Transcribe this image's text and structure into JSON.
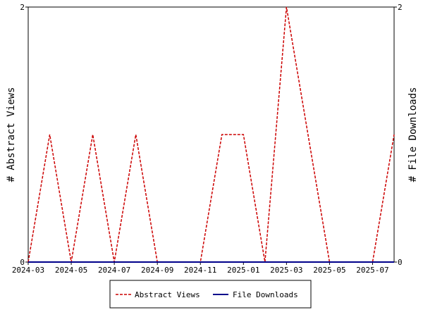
{
  "chart_data": {
    "type": "line",
    "x": [
      "2024-03",
      "2024-04",
      "2024-05",
      "2024-06",
      "2024-07",
      "2024-08",
      "2024-09",
      "2024-10",
      "2024-11",
      "2024-12",
      "2025-01",
      "2025-02",
      "2025-03",
      "2025-04",
      "2025-05",
      "2025-06",
      "2025-07",
      "2025-08"
    ],
    "x_tick_labels": [
      "2024-03",
      "2024-05",
      "2024-07",
      "2024-09",
      "2024-11",
      "2025-01",
      "2025-03",
      "2025-05",
      "2025-07"
    ],
    "ylabel_left": "# Abstract Views",
    "ylabel_right": "# File Downloads",
    "ylim_left": [
      0,
      2
    ],
    "ylim_right": [
      0,
      2
    ],
    "y_ticks_left": [
      "0",
      "2"
    ],
    "y_ticks_right": [
      "0",
      "2"
    ],
    "grid": false,
    "legend_position": "bottom",
    "series": [
      {
        "name": "Abstract Views",
        "axis": "left",
        "color": "#cc0000",
        "dashed": true,
        "values": [
          0,
          1,
          0,
          1,
          0,
          1,
          0,
          0,
          0,
          1,
          1,
          0,
          2,
          1,
          0,
          0,
          0,
          1
        ]
      },
      {
        "name": "File Downloads",
        "axis": "right",
        "color": "#00008b",
        "dashed": false,
        "values": [
          0,
          0,
          0,
          0,
          0,
          0,
          0,
          0,
          0,
          0,
          0,
          0,
          0,
          0,
          0,
          0,
          0,
          0
        ]
      }
    ]
  }
}
